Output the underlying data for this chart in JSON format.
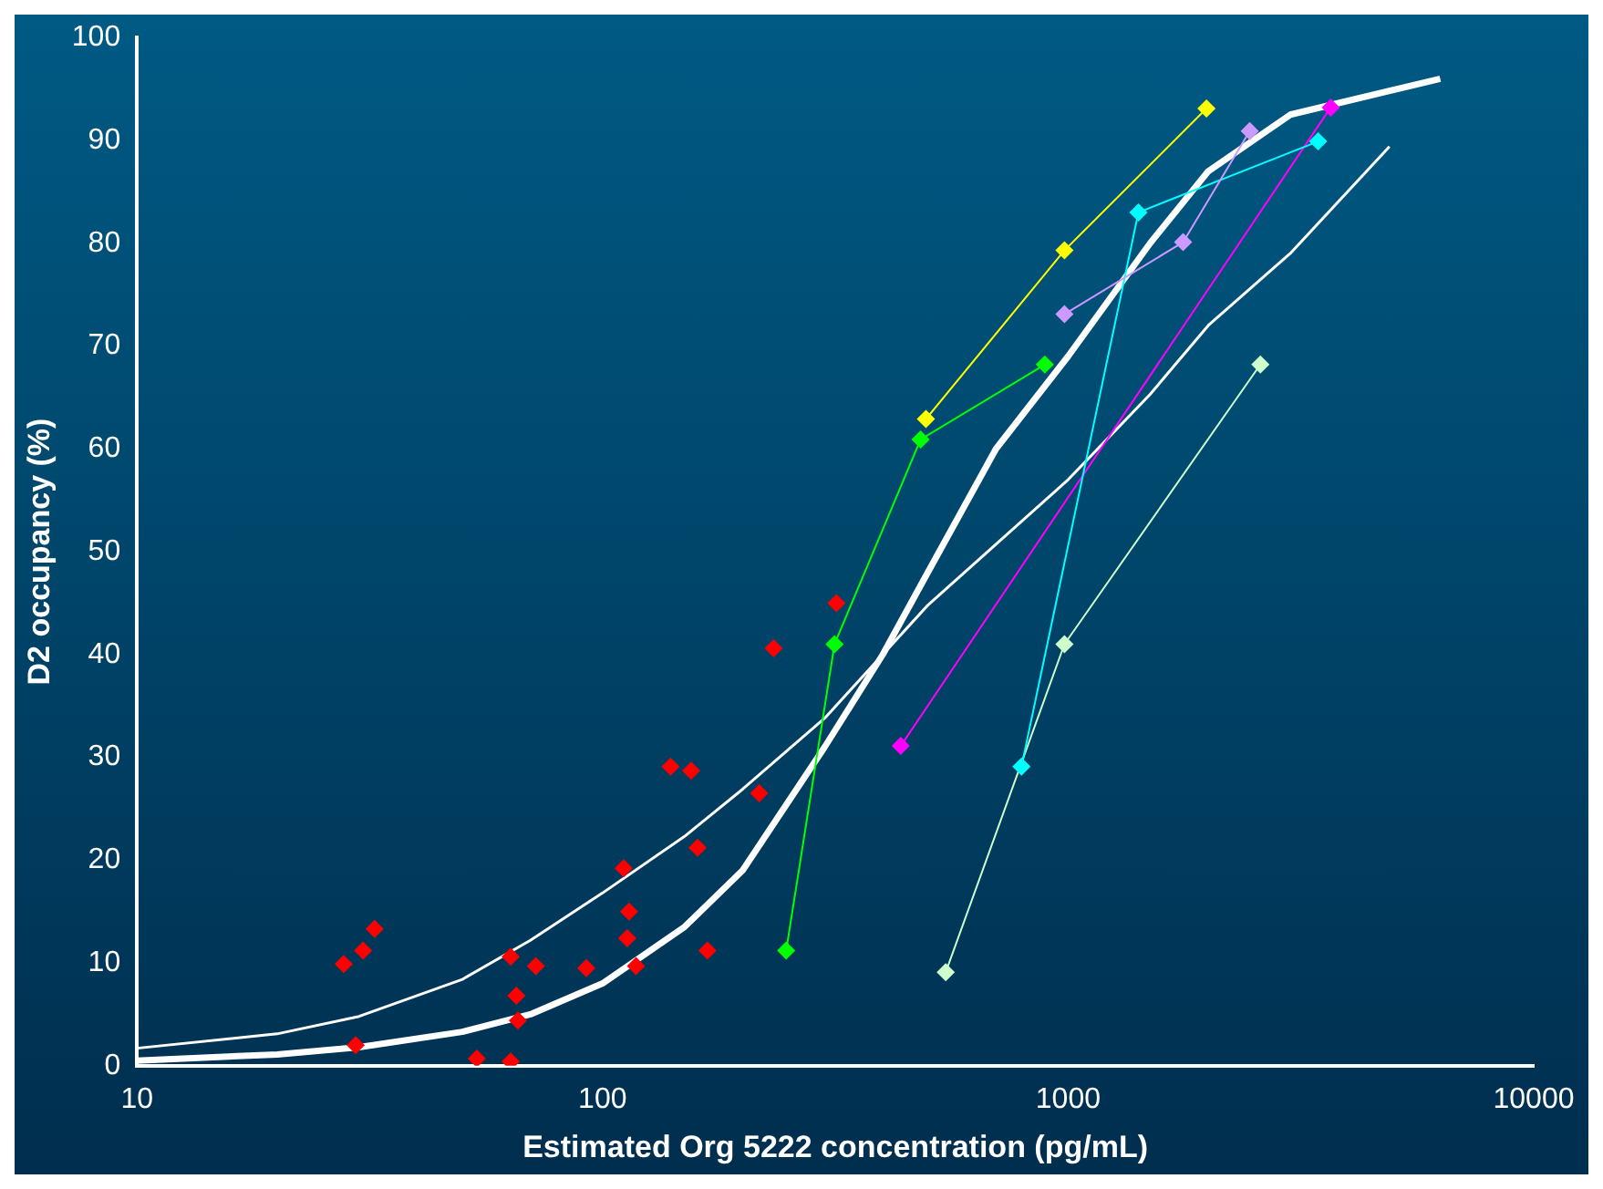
{
  "chart_data": {
    "type": "scatter",
    "xlabel": "Estimated Org 5222 concentration (pg/mL)",
    "ylabel": "D2 occupancy (%)",
    "log": "x",
    "xlim": [
      10,
      10000
    ],
    "xticks": [
      10,
      100,
      1000,
      10000
    ],
    "ylim": [
      0,
      100
    ],
    "yticks": [
      0,
      10,
      20,
      30,
      40,
      50,
      60,
      70,
      80,
      90,
      100
    ],
    "grid": false,
    "legend": false,
    "marker": "diamond",
    "series": [
      {
        "type": "scatter",
        "color": "#ff0000",
        "x": [
          27.8,
          30.6,
          32.4,
          29.5,
          53.7,
          63.5,
          63.5,
          65.3,
          65.8,
          71.9,
          92.3,
          111,
          114,
          113,
          118,
          140,
          155,
          160,
          168,
          217,
          233,
          318
        ],
        "values": [
          9.9,
          11.2,
          13.3,
          2,
          0.7,
          10.6,
          0.4,
          6.8,
          4.4,
          9.7,
          9.5,
          19.2,
          15,
          12.4,
          9.7,
          29.1,
          28.7,
          21.2,
          11.2,
          26.5,
          40.6,
          45
        ]
      },
      {
        "type": "line",
        "color": "#00ff00",
        "x": [
          248,
          315,
          482,
          891
        ],
        "values": [
          11.2,
          41,
          60.9,
          68.2
        ]
      },
      {
        "type": "line",
        "color": "#ffff00",
        "x": [
          495,
          982,
          1982
        ],
        "values": [
          62.9,
          79.3,
          93.1
        ]
      },
      {
        "type": "line",
        "color": "#cc99ff",
        "x": [
          982,
          1766,
          2455
        ],
        "values": [
          73.1,
          80.1,
          90.9
        ]
      },
      {
        "type": "line",
        "color": "#00ffff",
        "x": [
          794,
          1416,
          3443
        ],
        "values": [
          29.1,
          83,
          89.9
        ]
      },
      {
        "type": "line",
        "color": "#ff00ff",
        "x": [
          437,
          3664
        ],
        "values": [
          31.1,
          93.2
        ]
      },
      {
        "type": "line",
        "color": "#ccffcc",
        "x": [
          546,
          982,
          2588
        ],
        "values": [
          9.1,
          41,
          68.2
        ]
      },
      {
        "type": "line",
        "color": "#ffffff",
        "marker": "none",
        "x": [
          10,
          20,
          30,
          50,
          70,
          100,
          150,
          200,
          300,
          400,
          500,
          700,
          1000,
          1500,
          2000,
          3000,
          6300
        ],
        "values": [
          0.5,
          1.1,
          1.8,
          3.3,
          5,
          8,
          13.5,
          19,
          31,
          40,
          48,
          60,
          69,
          80,
          87,
          92.5,
          96
        ]
      },
      {
        "type": "line",
        "color": "#ffffff",
        "marker": "none",
        "x": [
          10,
          20,
          30,
          50,
          70,
          100,
          150,
          200,
          300,
          500,
          1000,
          1500,
          2000,
          3000,
          4900
        ],
        "values": [
          1.7,
          3.1,
          4.8,
          8.4,
          12.2,
          16.8,
          22.3,
          26.9,
          33.8,
          44.8,
          57,
          65.3,
          72,
          79,
          89.4
        ]
      }
    ]
  }
}
